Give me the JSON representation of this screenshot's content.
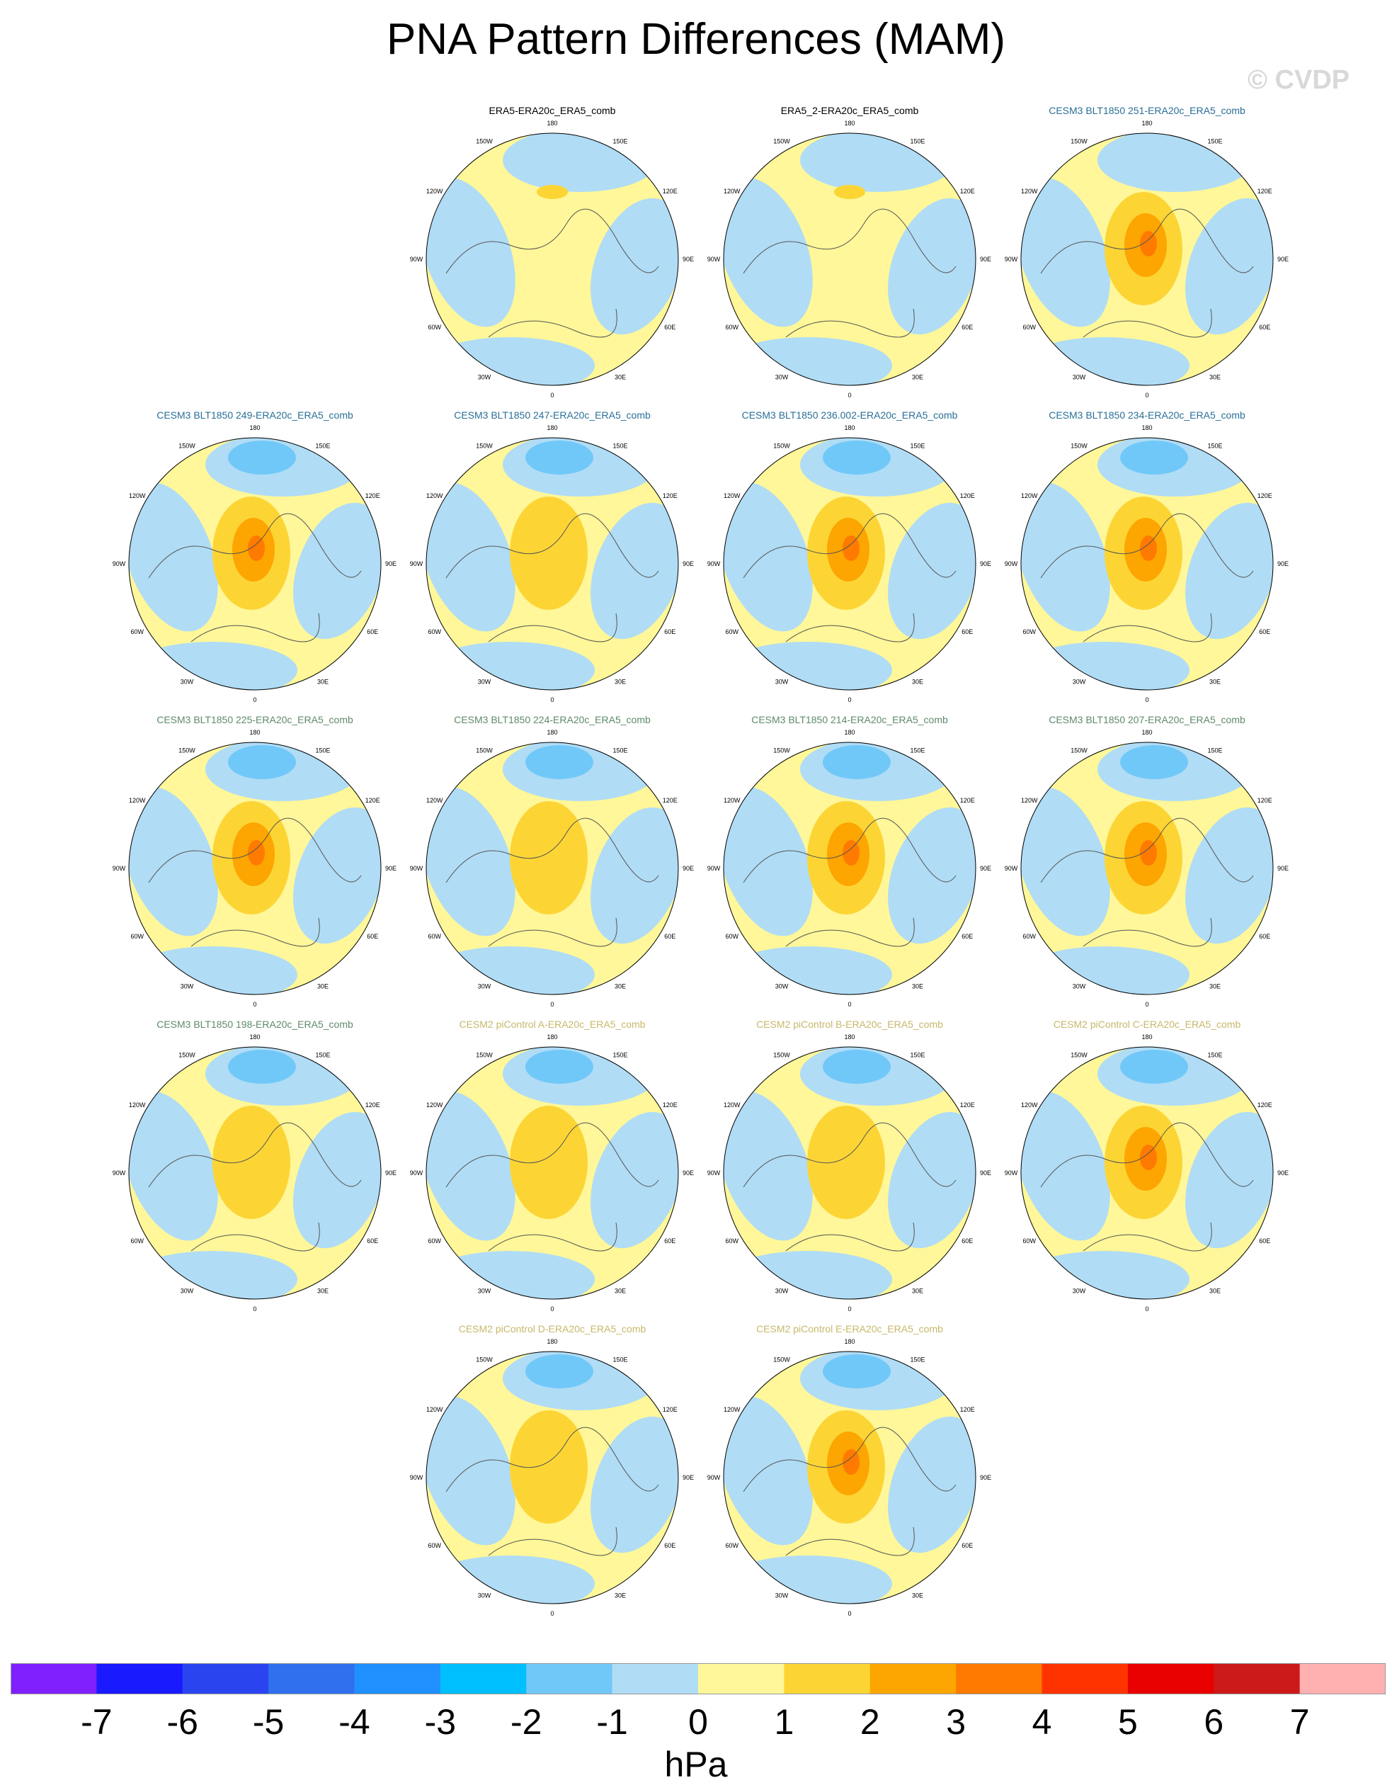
{
  "title": "PNA Pattern Differences (MAM)",
  "watermark": "© CVDP",
  "chart_data": {
    "type": "heatmap",
    "projection": "polar stereographic, northern hemisphere",
    "lon_labels": [
      "180",
      "150E",
      "120E",
      "90E",
      "60E",
      "30E",
      "0",
      "30W",
      "60W",
      "90W",
      "120W",
      "150W"
    ],
    "panels": [
      {
        "title": "ERA5-ERA20c_ERA5_comb",
        "title_color": "#000000",
        "max_anomaly": 1
      },
      {
        "title": "ERA5_2-ERA20c_ERA5_comb",
        "title_color": "#000000",
        "max_anomaly": 1
      },
      {
        "title": "CESM3 BLT1850 251-ERA20c_ERA5_comb",
        "title_color": "#2a6f97",
        "max_anomaly": 3
      },
      {
        "title": "CESM3 BLT1850 249-ERA20c_ERA5_comb",
        "title_color": "#2a6f97",
        "max_anomaly": 3
      },
      {
        "title": "CESM3 BLT1850 247-ERA20c_ERA5_comb",
        "title_color": "#2a6f97",
        "max_anomaly": 2
      },
      {
        "title": "CESM3 BLT1850 236.002-ERA20c_ERA5_comb",
        "title_color": "#2a6f97",
        "max_anomaly": 3
      },
      {
        "title": "CESM3 BLT1850 234-ERA20c_ERA5_comb",
        "title_color": "#2a6f97",
        "max_anomaly": 3
      },
      {
        "title": "CESM3 BLT1850 225-ERA20c_ERA5_comb",
        "title_color": "#5e8a6a",
        "max_anomaly": 3
      },
      {
        "title": "CESM3 BLT1850 224-ERA20c_ERA5_comb",
        "title_color": "#5e8a6a",
        "max_anomaly": 2
      },
      {
        "title": "CESM3 BLT1850 214-ERA20c_ERA5_comb",
        "title_color": "#5e8a6a",
        "max_anomaly": 3
      },
      {
        "title": "CESM3 BLT1850 207-ERA20c_ERA5_comb",
        "title_color": "#5e8a6a",
        "max_anomaly": 3
      },
      {
        "title": "CESM3 BLT1850 198-ERA20c_ERA5_comb",
        "title_color": "#5e8a6a",
        "max_anomaly": 2
      },
      {
        "title": "CESM2 piControl A-ERA20c_ERA5_comb",
        "title_color": "#c7b86a",
        "max_anomaly": 2
      },
      {
        "title": "CESM2 piControl B-ERA20c_ERA5_comb",
        "title_color": "#c7b86a",
        "max_anomaly": 2
      },
      {
        "title": "CESM2 piControl C-ERA20c_ERA5_comb",
        "title_color": "#c7b86a",
        "max_anomaly": 3
      },
      {
        "title": "CESM2 piControl D-ERA20c_ERA5_comb",
        "title_color": "#c7b86a",
        "max_anomaly": 2
      },
      {
        "title": "CESM2 piControl E-ERA20c_ERA5_comb",
        "title_color": "#c7b86a",
        "max_anomaly": 3
      }
    ],
    "colorbar": {
      "levels": [
        "-7",
        "-6",
        "-5",
        "-4",
        "-3",
        "-2",
        "-1",
        "0",
        "1",
        "2",
        "3",
        "4",
        "5",
        "6",
        "7"
      ],
      "colors": [
        "#8020ff",
        "#1a1aff",
        "#2a45f0",
        "#3070ee",
        "#2090ff",
        "#00bfff",
        "#70c8f8",
        "#b0dcf5",
        "#fff799",
        "#fcd535",
        "#fda500",
        "#ff7a00",
        "#ff3300",
        "#e80000",
        "#cc1a1a",
        "#ffb0b0"
      ],
      "units": "hPa"
    }
  }
}
